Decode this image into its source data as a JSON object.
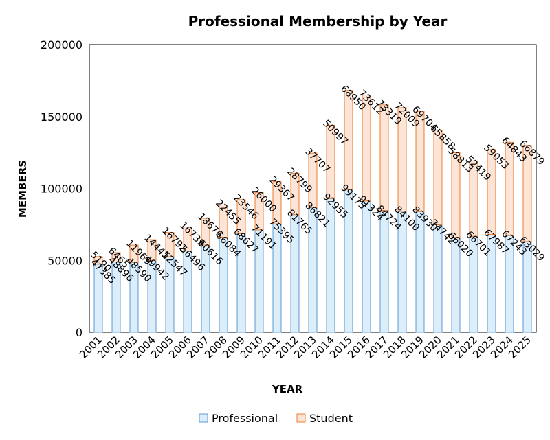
{
  "chart_data": {
    "type": "bar",
    "stacked": true,
    "title": "Professional Membership by Year",
    "xlabel": "YEAR",
    "ylabel": "MEMBERS",
    "ylim": [
      0,
      200000
    ],
    "yticks": [
      0,
      50000,
      100000,
      150000,
      200000
    ],
    "ytick_labels": [
      "0",
      "50000",
      "100000",
      "150000",
      "200000"
    ],
    "grid": false,
    "legend_position": "bottom",
    "categories": [
      "2001",
      "2002",
      "2003",
      "2004",
      "2005",
      "2006",
      "2007",
      "2008",
      "2009",
      "2010",
      "2011",
      "2012",
      "2013",
      "2014",
      "2015",
      "2016",
      "2017",
      "2018",
      "2019",
      "2020",
      "2021",
      "2022",
      "2023",
      "2024",
      "2025"
    ],
    "series": [
      {
        "name": "Professional",
        "fill": "#dceefa",
        "stroke": "#5b9bd5",
        "values": [
          47385,
          48896,
          48590,
          49942,
          52547,
          56496,
          60616,
          66084,
          68627,
          71191,
          75395,
          81765,
          86821,
          92955,
          99175,
          91324,
          84724,
          84100,
          83930,
          74742,
          66020,
          66701,
          67987,
          67243,
          63029
        ],
        "labels": [
          "47385",
          "48896",
          "48590",
          "49942",
          "52547",
          "56496",
          "60616",
          "66084",
          "68627",
          "71191",
          "75395",
          "81765",
          "86821",
          "92955",
          "99175",
          "91324",
          "84724",
          "84100",
          "83930",
          "74742",
          "66020",
          "66701",
          "67987",
          "67243",
          "63029"
        ]
      },
      {
        "name": "Student",
        "fill": "#fce4d6",
        "stroke": "#ed7d31",
        "values": [
          5190,
          6465,
          11969,
          14441,
          16792,
          16739,
          18676,
          22455,
          23546,
          26000,
          29367,
          28799,
          37707,
          50997,
          68950,
          73612,
          73319,
          72009,
          69704,
          65858,
          58813,
          52419,
          59053,
          64843,
          66879
        ],
        "labels": [
          "5190",
          "6465",
          "11969",
          "14441",
          "16792",
          "16739",
          "18676",
          "22455",
          "23546",
          "26000",
          "29367",
          "28799",
          "37707",
          "50997",
          "68950",
          "73612",
          "73319",
          "72009",
          "69704",
          "65858",
          "58813",
          "52419",
          "59053",
          "64843",
          "66879"
        ]
      }
    ]
  }
}
